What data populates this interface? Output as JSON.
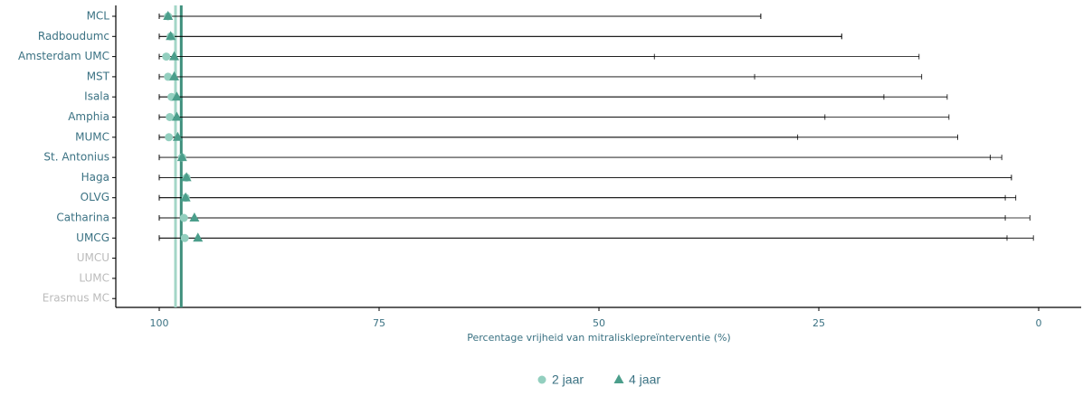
{
  "chart_data": {
    "type": "dot_errorbar",
    "x_label": "Percentage vrijheid van mitralisklepreïnterventie (%)",
    "categories": [
      "MCL",
      "Radboudumc",
      "Amsterdam UMC",
      "MST",
      "Isala",
      "Amphia",
      "MUMC",
      "St. Antonius",
      "Haga",
      "OLVG",
      "Catharina",
      "UMCG",
      "UMCU",
      "LUMC",
      "Erasmus MC"
    ],
    "xlim": [
      100,
      0
    ],
    "xticks": [
      100,
      75,
      50,
      25,
      0
    ],
    "series": [
      {
        "name": "2 jaar",
        "marker": "circle",
        "color": "#93cfbf",
        "reference": 98.15,
        "values": [
          99.0,
          98.7,
          99.2,
          99.0,
          98.6,
          98.8,
          98.9,
          97.4,
          96.9,
          97.0,
          97.2,
          97.1,
          null,
          null,
          null
        ],
        "lower": [
          31.6,
          22.4,
          43.7,
          32.3,
          17.6,
          24.3,
          27.4,
          5.5,
          3.1,
          3.8,
          3.8,
          3.6,
          null,
          null,
          null
        ],
        "upper": [
          100,
          100,
          100,
          100,
          100,
          100,
          100,
          100,
          100,
          100,
          100,
          100,
          null,
          null,
          null
        ]
      },
      {
        "name": "4 jaar",
        "marker": "triangle",
        "color": "#4b9e8b",
        "reference": 97.5,
        "values": [
          99.0,
          98.7,
          98.3,
          98.3,
          98.0,
          98.0,
          97.9,
          97.4,
          96.9,
          97.0,
          96.0,
          95.6,
          null,
          null,
          null
        ],
        "lower": [
          31.6,
          22.4,
          13.6,
          13.3,
          10.4,
          10.2,
          9.2,
          4.2,
          3.1,
          2.6,
          1.0,
          0.6,
          null,
          null,
          null
        ],
        "upper": [
          100,
          100,
          100,
          100,
          100,
          100,
          100,
          100,
          100,
          100,
          100,
          100,
          null,
          null,
          null
        ]
      }
    ]
  }
}
